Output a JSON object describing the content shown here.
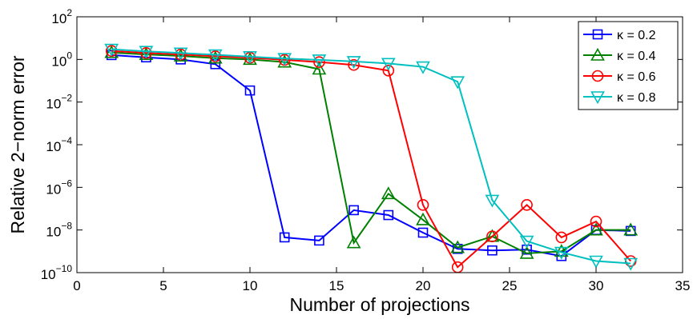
{
  "chart_data": {
    "type": "line",
    "xlabel": "Number of projections",
    "ylabel": "Relative 2−norm error",
    "xlim": [
      0,
      35
    ],
    "ylim": [
      1e-10,
      100
    ],
    "yscale": "log",
    "xticks": [
      0,
      5,
      10,
      15,
      20,
      25,
      30,
      35
    ],
    "xtick_labels": [
      "0",
      "5",
      "10",
      "15",
      "20",
      "25",
      "30",
      "35"
    ],
    "yticks": [
      1e-10,
      1e-08,
      1e-06,
      0.0001,
      0.01,
      1,
      100
    ],
    "ytick_labels": [
      {
        "base": "10",
        "exp": "−10"
      },
      {
        "base": "10",
        "exp": "−8"
      },
      {
        "base": "10",
        "exp": "−6"
      },
      {
        "base": "10",
        "exp": "−4"
      },
      {
        "base": "10",
        "exp": "−2"
      },
      {
        "base": "10",
        "exp": "0"
      },
      {
        "base": "10",
        "exp": "2"
      }
    ],
    "grid": false,
    "legend_position": "top-right",
    "x": [
      2,
      4,
      6,
      8,
      10,
      12,
      14,
      16,
      18,
      20,
      22,
      24,
      26,
      28,
      30,
      32
    ],
    "series": [
      {
        "name": "κ = 0.2",
        "color": "#0000ff",
        "marker": "square",
        "values": [
          1.6,
          1.25,
          1.0,
          0.6,
          0.035,
          4.5e-09,
          3.2e-09,
          8.5e-08,
          5e-08,
          7.5e-09,
          1.3e-09,
          1.1e-09,
          1.2e-09,
          6e-10,
          1e-08,
          9e-09
        ]
      },
      {
        "name": "κ = 0.4",
        "color": "#008000",
        "marker": "triangle-up",
        "values": [
          2.1,
          1.7,
          1.45,
          1.15,
          1.0,
          0.75,
          0.35,
          2.5e-09,
          5e-07,
          3e-08,
          1.5e-09,
          5e-09,
          8e-10,
          1e-09,
          1e-08,
          1e-08
        ]
      },
      {
        "name": "κ = 0.6",
        "color": "#ff0000",
        "marker": "circle",
        "values": [
          2.5,
          2.0,
          1.7,
          1.4,
          1.2,
          0.95,
          0.75,
          0.55,
          0.3,
          1.5e-07,
          1.8e-10,
          5e-09,
          1.5e-07,
          4.5e-09,
          2.5e-08,
          3.5e-10
        ]
      },
      {
        "name": "κ = 0.8",
        "color": "#00bfbf",
        "marker": "triangle-down",
        "values": [
          3.0,
          2.4,
          2.0,
          1.65,
          1.35,
          1.1,
          0.95,
          0.8,
          0.65,
          0.45,
          0.09,
          2.5e-07,
          3e-09,
          9e-10,
          3.5e-10,
          2.7e-10
        ]
      }
    ]
  }
}
